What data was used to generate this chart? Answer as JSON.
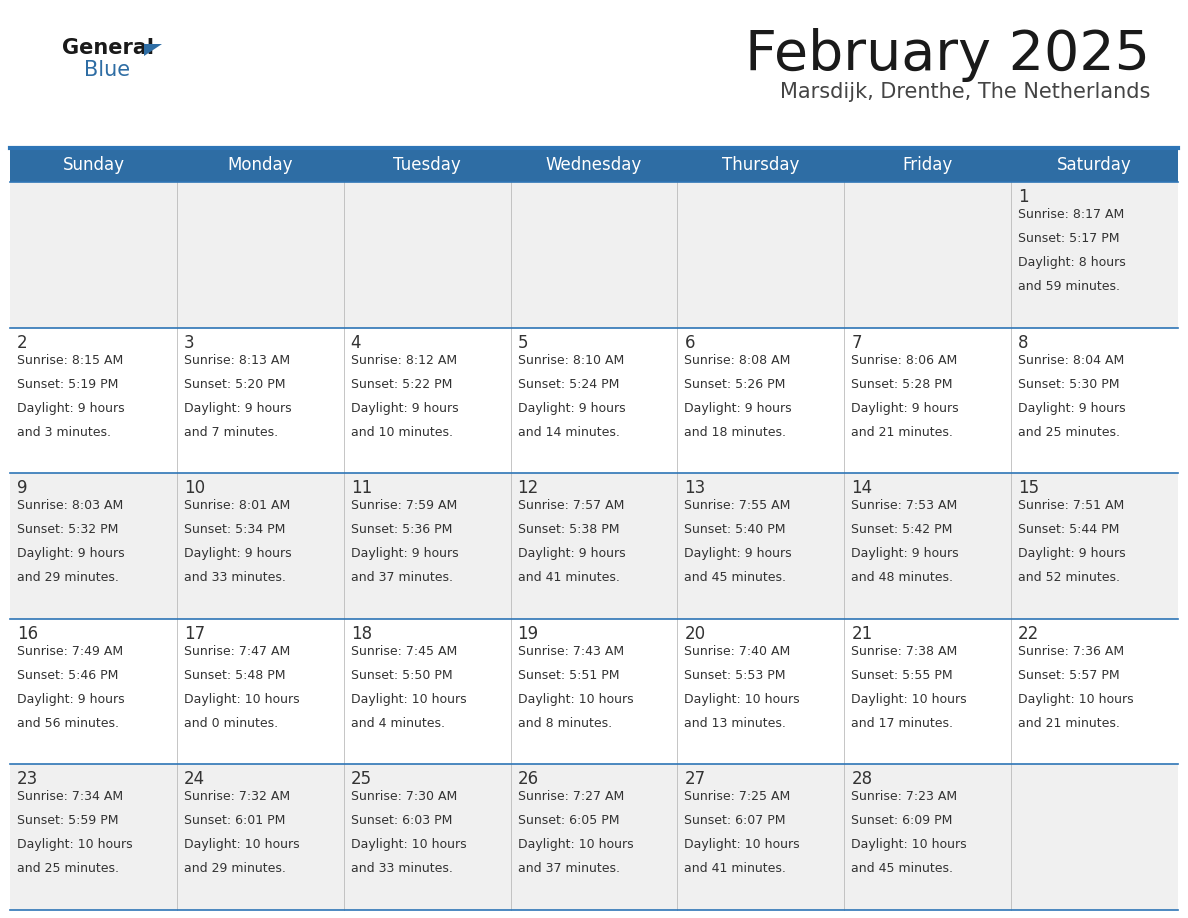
{
  "title": "February 2025",
  "subtitle": "Marsdijk, Drenthe, The Netherlands",
  "header_bg": "#2E6DA4",
  "header_text_color": "#FFFFFF",
  "days_of_week": [
    "Sunday",
    "Monday",
    "Tuesday",
    "Wednesday",
    "Thursday",
    "Friday",
    "Saturday"
  ],
  "alt_row_bg": "#F0F0F0",
  "white_row_bg": "#FFFFFF",
  "border_color": "#2E75B6",
  "day_text_color": "#333333",
  "info_text_color": "#333333",
  "num_cols": 7,
  "num_rows": 5,
  "logo_general_color": "#1a1a1a",
  "logo_blue_color": "#2E6DA4",
  "title_color": "#1a1a1a",
  "subtitle_color": "#444444",
  "calendar": [
    [
      null,
      null,
      null,
      null,
      null,
      null,
      {
        "day": 1,
        "sunrise": "8:17 AM",
        "sunset": "5:17 PM",
        "daylight_hours": 8,
        "daylight_minutes": 59
      }
    ],
    [
      {
        "day": 2,
        "sunrise": "8:15 AM",
        "sunset": "5:19 PM",
        "daylight_hours": 9,
        "daylight_minutes": 3
      },
      {
        "day": 3,
        "sunrise": "8:13 AM",
        "sunset": "5:20 PM",
        "daylight_hours": 9,
        "daylight_minutes": 7
      },
      {
        "day": 4,
        "sunrise": "8:12 AM",
        "sunset": "5:22 PM",
        "daylight_hours": 9,
        "daylight_minutes": 10
      },
      {
        "day": 5,
        "sunrise": "8:10 AM",
        "sunset": "5:24 PM",
        "daylight_hours": 9,
        "daylight_minutes": 14
      },
      {
        "day": 6,
        "sunrise": "8:08 AM",
        "sunset": "5:26 PM",
        "daylight_hours": 9,
        "daylight_minutes": 18
      },
      {
        "day": 7,
        "sunrise": "8:06 AM",
        "sunset": "5:28 PM",
        "daylight_hours": 9,
        "daylight_minutes": 21
      },
      {
        "day": 8,
        "sunrise": "8:04 AM",
        "sunset": "5:30 PM",
        "daylight_hours": 9,
        "daylight_minutes": 25
      }
    ],
    [
      {
        "day": 9,
        "sunrise": "8:03 AM",
        "sunset": "5:32 PM",
        "daylight_hours": 9,
        "daylight_minutes": 29
      },
      {
        "day": 10,
        "sunrise": "8:01 AM",
        "sunset": "5:34 PM",
        "daylight_hours": 9,
        "daylight_minutes": 33
      },
      {
        "day": 11,
        "sunrise": "7:59 AM",
        "sunset": "5:36 PM",
        "daylight_hours": 9,
        "daylight_minutes": 37
      },
      {
        "day": 12,
        "sunrise": "7:57 AM",
        "sunset": "5:38 PM",
        "daylight_hours": 9,
        "daylight_minutes": 41
      },
      {
        "day": 13,
        "sunrise": "7:55 AM",
        "sunset": "5:40 PM",
        "daylight_hours": 9,
        "daylight_minutes": 45
      },
      {
        "day": 14,
        "sunrise": "7:53 AM",
        "sunset": "5:42 PM",
        "daylight_hours": 9,
        "daylight_minutes": 48
      },
      {
        "day": 15,
        "sunrise": "7:51 AM",
        "sunset": "5:44 PM",
        "daylight_hours": 9,
        "daylight_minutes": 52
      }
    ],
    [
      {
        "day": 16,
        "sunrise": "7:49 AM",
        "sunset": "5:46 PM",
        "daylight_hours": 9,
        "daylight_minutes": 56
      },
      {
        "day": 17,
        "sunrise": "7:47 AM",
        "sunset": "5:48 PM",
        "daylight_hours": 10,
        "daylight_minutes": 0
      },
      {
        "day": 18,
        "sunrise": "7:45 AM",
        "sunset": "5:50 PM",
        "daylight_hours": 10,
        "daylight_minutes": 4
      },
      {
        "day": 19,
        "sunrise": "7:43 AM",
        "sunset": "5:51 PM",
        "daylight_hours": 10,
        "daylight_minutes": 8
      },
      {
        "day": 20,
        "sunrise": "7:40 AM",
        "sunset": "5:53 PM",
        "daylight_hours": 10,
        "daylight_minutes": 13
      },
      {
        "day": 21,
        "sunrise": "7:38 AM",
        "sunset": "5:55 PM",
        "daylight_hours": 10,
        "daylight_minutes": 17
      },
      {
        "day": 22,
        "sunrise": "7:36 AM",
        "sunset": "5:57 PM",
        "daylight_hours": 10,
        "daylight_minutes": 21
      }
    ],
    [
      {
        "day": 23,
        "sunrise": "7:34 AM",
        "sunset": "5:59 PM",
        "daylight_hours": 10,
        "daylight_minutes": 25
      },
      {
        "day": 24,
        "sunrise": "7:32 AM",
        "sunset": "6:01 PM",
        "daylight_hours": 10,
        "daylight_minutes": 29
      },
      {
        "day": 25,
        "sunrise": "7:30 AM",
        "sunset": "6:03 PM",
        "daylight_hours": 10,
        "daylight_minutes": 33
      },
      {
        "day": 26,
        "sunrise": "7:27 AM",
        "sunset": "6:05 PM",
        "daylight_hours": 10,
        "daylight_minutes": 37
      },
      {
        "day": 27,
        "sunrise": "7:25 AM",
        "sunset": "6:07 PM",
        "daylight_hours": 10,
        "daylight_minutes": 41
      },
      {
        "day": 28,
        "sunrise": "7:23 AM",
        "sunset": "6:09 PM",
        "daylight_hours": 10,
        "daylight_minutes": 45
      },
      null
    ]
  ]
}
